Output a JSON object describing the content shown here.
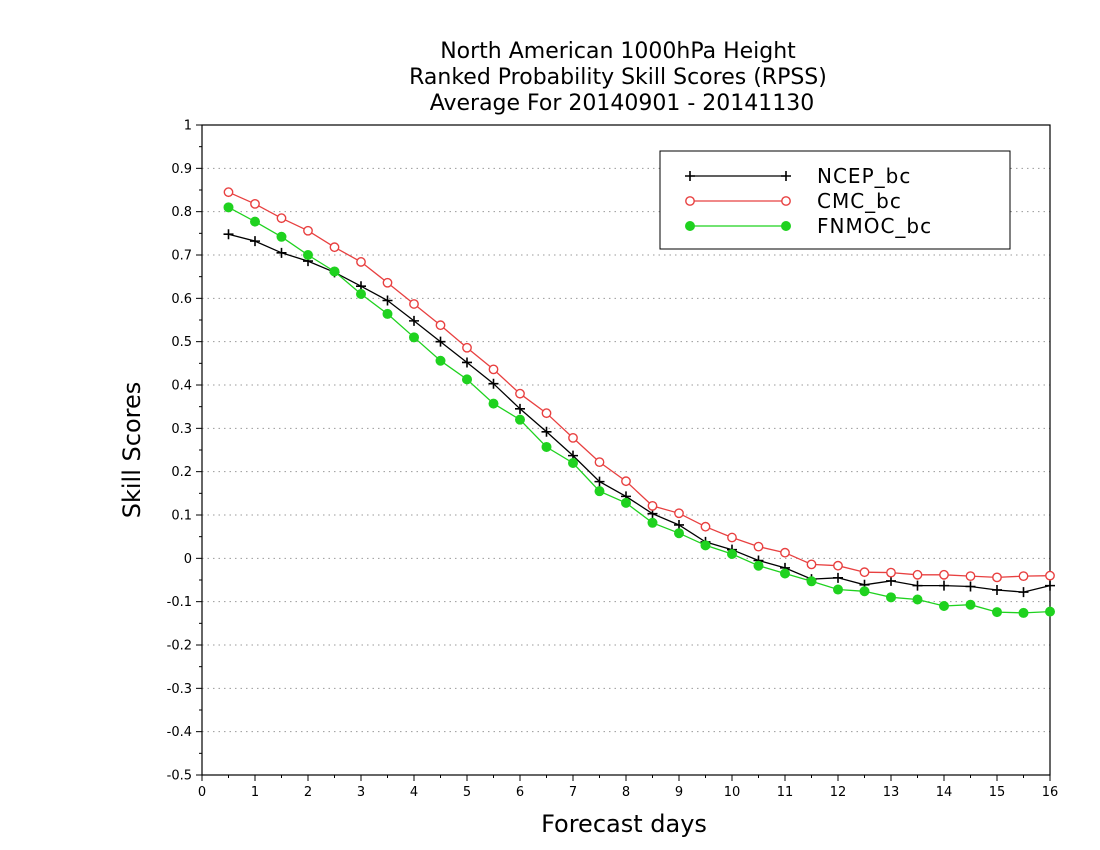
{
  "chart_data": {
    "type": "line",
    "title": [
      "North American 1000hPa Height",
      "Ranked Probability Skill Scores (RPSS)",
      "Average For 20140901 - 20141130"
    ],
    "xlabel": "Forecast days",
    "ylabel": "Skill Scores",
    "xlim": [
      0,
      16
    ],
    "ylim": [
      -0.5,
      1
    ],
    "xticks": [
      "0",
      "1",
      "2",
      "3",
      "4",
      "5",
      "6",
      "7",
      "8",
      "9",
      "10",
      "11",
      "12",
      "13",
      "14",
      "15",
      "16"
    ],
    "yticks": [
      "-0.5",
      "-0.4",
      "-0.3",
      "-0.2",
      "-0.1",
      "0",
      "0.1",
      "0.2",
      "0.3",
      "0.4",
      "0.5",
      "0.6",
      "0.7",
      "0.8",
      "0.9",
      "1"
    ],
    "grid": "horizontal-dotted",
    "legend_position": "top-right",
    "x": [
      0.5,
      1,
      1.5,
      2,
      2.5,
      3,
      3.5,
      4,
      4.5,
      5,
      5.5,
      6,
      6.5,
      7,
      7.5,
      8,
      8.5,
      9,
      9.5,
      10,
      10.5,
      11,
      11.5,
      12,
      12.5,
      13,
      13.5,
      14,
      14.5,
      15,
      15.5,
      16
    ],
    "series": [
      {
        "name": "NCEP_bc",
        "color": "#000000",
        "marker": "plus",
        "values": [
          0.748,
          0.732,
          0.705,
          0.686,
          0.66,
          0.628,
          0.595,
          0.548,
          0.5,
          0.452,
          0.403,
          0.345,
          0.292,
          0.237,
          0.177,
          0.143,
          0.103,
          0.077,
          0.038,
          0.02,
          -0.005,
          -0.022,
          -0.048,
          -0.045,
          -0.061,
          -0.052,
          -0.063,
          -0.063,
          -0.065,
          -0.073,
          -0.078,
          -0.063
        ]
      },
      {
        "name": "CMC_bc",
        "color": "#e84040",
        "marker": "open-circle",
        "values": [
          0.845,
          0.818,
          0.785,
          0.756,
          0.718,
          0.684,
          0.636,
          0.587,
          0.538,
          0.486,
          0.436,
          0.38,
          0.335,
          0.278,
          0.222,
          0.178,
          0.121,
          0.104,
          0.073,
          0.048,
          0.027,
          0.013,
          -0.014,
          -0.017,
          -0.032,
          -0.033,
          -0.038,
          -0.038,
          -0.041,
          -0.044,
          -0.041,
          -0.04
        ]
      },
      {
        "name": "FNMOC_bc",
        "color": "#1fd21f",
        "marker": "filled-circle",
        "values": [
          0.81,
          0.777,
          0.742,
          0.7,
          0.662,
          0.61,
          0.564,
          0.51,
          0.456,
          0.413,
          0.357,
          0.32,
          0.257,
          0.22,
          0.155,
          0.128,
          0.082,
          0.058,
          0.03,
          0.01,
          -0.017,
          -0.035,
          -0.053,
          -0.072,
          -0.076,
          -0.09,
          -0.095,
          -0.11,
          -0.107,
          -0.124,
          -0.126,
          -0.123
        ]
      }
    ]
  }
}
